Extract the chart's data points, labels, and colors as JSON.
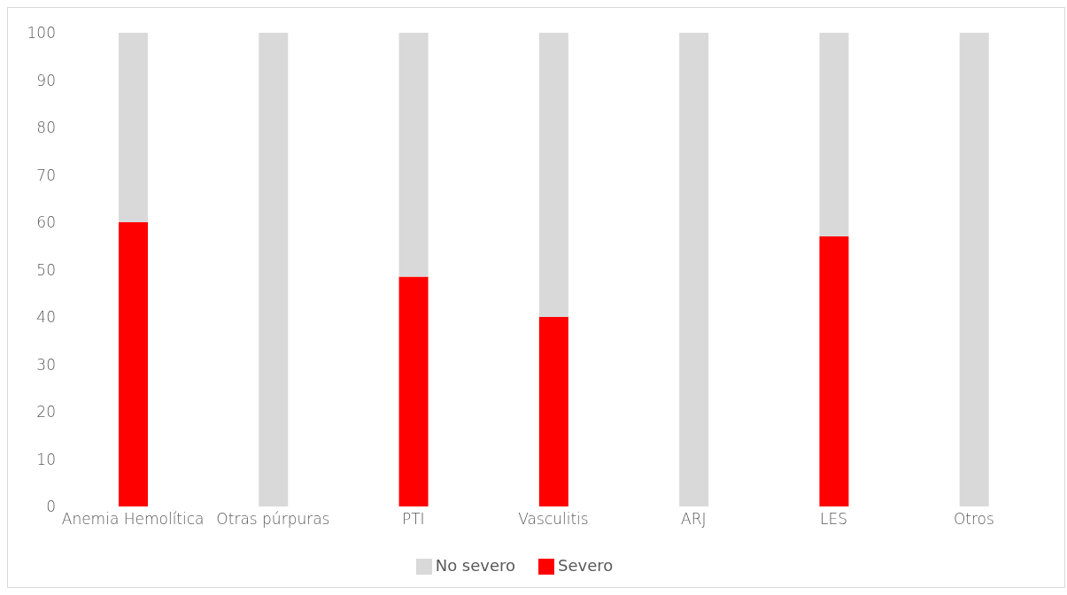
{
  "chart_data": {
    "type": "bar",
    "stacked": true,
    "categories": [
      "Anemia Hemolítica",
      "Otras púrpuras",
      "PTI",
      "Vasculitis",
      "ARJ",
      "LES",
      "Otros"
    ],
    "series": [
      {
        "name": "Severo",
        "color": "#ff0000",
        "values": [
          60,
          0,
          48.5,
          40,
          0,
          57,
          0
        ]
      },
      {
        "name": "No severo",
        "color": "#d9d9d9",
        "values": [
          40,
          100,
          51.5,
          60,
          100,
          43,
          100
        ]
      }
    ],
    "ylim": [
      0,
      100
    ],
    "yticks": [
      0,
      10,
      20,
      30,
      40,
      50,
      60,
      70,
      80,
      90,
      100
    ],
    "grid": false,
    "legend": "bottom"
  }
}
